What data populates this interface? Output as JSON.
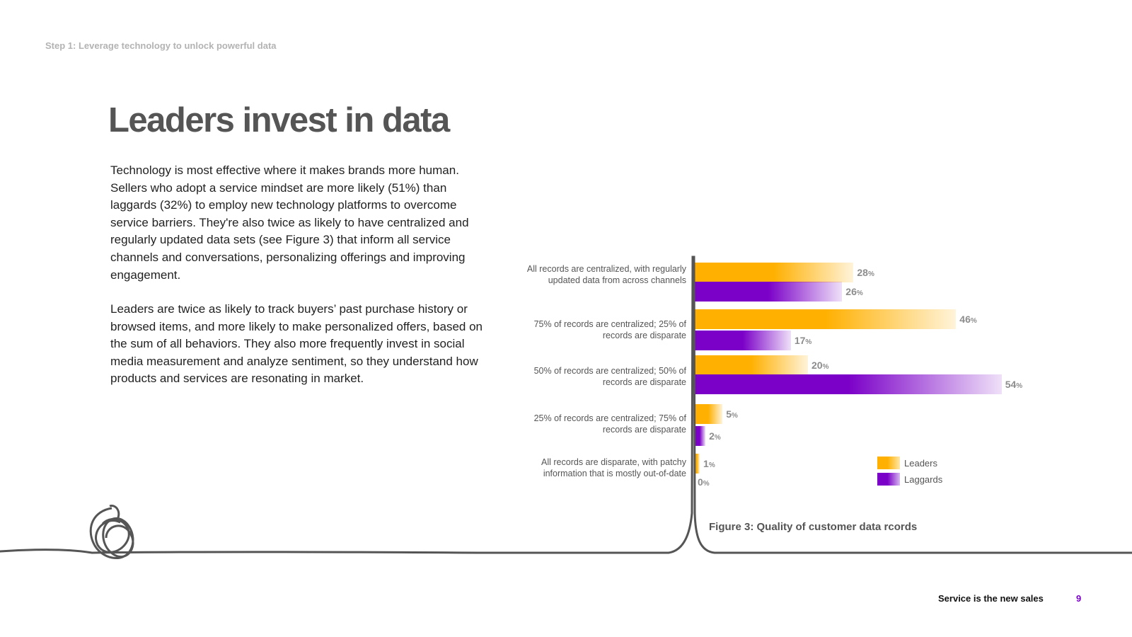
{
  "header": {
    "step": "Step 1: Leverage technology to unlock powerful data"
  },
  "main": {
    "title": "Leaders invest in data",
    "paragraph1": "Technology is most effective where it makes brands more human. Sellers who adopt a service mindset are more likely (51%) than laggards (32%) to employ new technology platforms to overcome service barriers. They're also twice as likely to have centralized and regularly updated data sets (see Figure 3) that inform all service channels and conversations, personalizing offerings and improving engagement.",
    "paragraph2": "Leaders are twice as likely to track buyers’ past purchase history or browsed items, and more likely to make personalized offers, based on the sum of all behaviors. They also more frequently invest in social media measurement and analyze sentiment, so they understand how products and services are resonating in market."
  },
  "chart_data": {
    "type": "bar",
    "orientation": "horizontal",
    "title": "Figure 3: Quality of customer data rcords",
    "categories": [
      "All records are centralized, with regularly updated data from across channels",
      "75% of records are centralized; 25% of records are disparate",
      "50% of records are centralized; 50% of records are disparate",
      "25% of records are centralized; 75% of records are disparate",
      "All records are disparate, with patchy information that is mostly out-of-date"
    ],
    "series": [
      {
        "name": "Leaders",
        "color": "#FFB000",
        "values": [
          28,
          46,
          20,
          5,
          1
        ]
      },
      {
        "name": "Laggards",
        "color": "#7B00C8",
        "values": [
          26,
          17,
          54,
          2,
          0
        ]
      }
    ],
    "value_suffix": "%",
    "xlim": [
      0,
      60
    ],
    "legend_position": "bottom-right"
  },
  "footer": {
    "title": "Service is the new sales",
    "page_number": "9"
  }
}
